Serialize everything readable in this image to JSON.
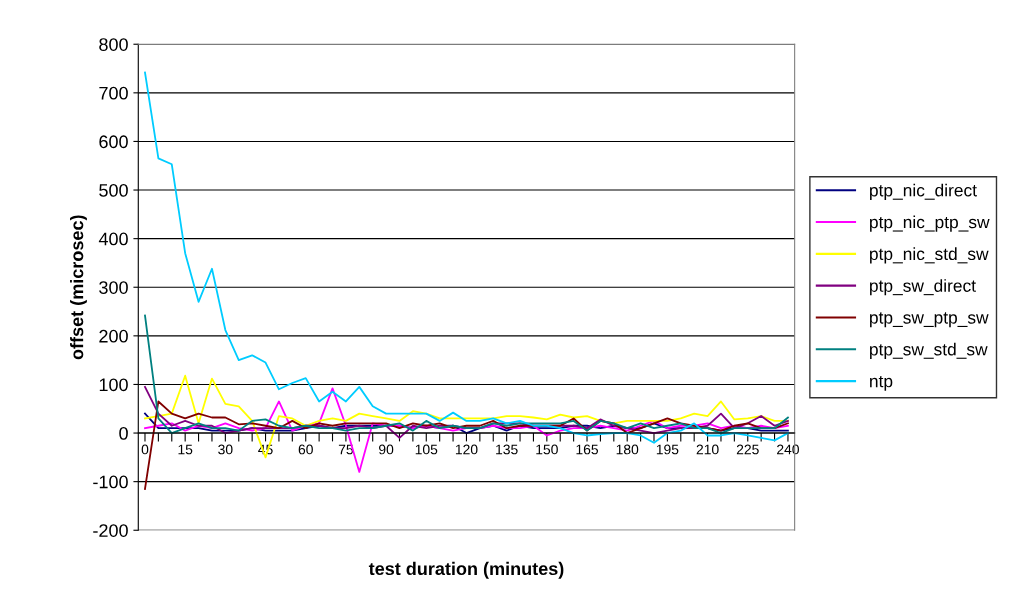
{
  "chart_data": {
    "type": "line",
    "xlabel": "test duration (minutes)",
    "ylabel": "offset (microsec)",
    "categories": [
      "0",
      null,
      null,
      "15",
      null,
      null,
      "30",
      null,
      null,
      "45",
      null,
      null,
      "60",
      null,
      null,
      "75",
      null,
      null,
      "90",
      null,
      null,
      "105",
      null,
      null,
      "120",
      null,
      null,
      "135",
      null,
      null,
      "150",
      null,
      null,
      "165",
      null,
      null,
      "180",
      null,
      null,
      "195",
      null,
      null,
      "210",
      null,
      null,
      "225",
      null,
      null,
      "240"
    ],
    "ylim": [
      -200,
      800
    ],
    "yticks": [
      -200,
      -100,
      0,
      100,
      200,
      300,
      400,
      500,
      600,
      700,
      800
    ],
    "grid": "y",
    "legend": "right",
    "marker": "none",
    "line_style": "solid",
    "series": [
      {
        "name": "ptp_nic_direct",
        "color": "#000080",
        "values": [
          40,
          10,
          10,
          10,
          10,
          5,
          5,
          5,
          10,
          5,
          5,
          5,
          10,
          15,
          10,
          15,
          15,
          15,
          15,
          15,
          10,
          15,
          10,
          15,
          0,
          10,
          15,
          5,
          15,
          10,
          10,
          10,
          15,
          15,
          10,
          15,
          10,
          10,
          20,
          10,
          10,
          10,
          10,
          5,
          10,
          10,
          5,
          5,
          5
        ]
      },
      {
        "name": "ptp_nic_ptp_sw",
        "color": "#ff00ff",
        "values": [
          10,
          15,
          20,
          5,
          15,
          10,
          20,
          10,
          5,
          10,
          65,
          5,
          15,
          20,
          92,
          15,
          -80,
          20,
          15,
          15,
          10,
          15,
          10,
          5,
          10,
          10,
          15,
          10,
          10,
          15,
          -5,
          5,
          10,
          10,
          15,
          10,
          5,
          15,
          25,
          10,
          15,
          15,
          20,
          10,
          15,
          10,
          15,
          10,
          15
        ]
      },
      {
        "name": "ptp_nic_std_sw",
        "color": "#ffff00",
        "values": [
          30,
          35,
          40,
          118,
          20,
          112,
          60,
          55,
          25,
          -50,
          35,
          30,
          15,
          25,
          30,
          25,
          40,
          35,
          30,
          25,
          45,
          40,
          30,
          30,
          30,
          30,
          30,
          35,
          35,
          32,
          28,
          38,
          32,
          35,
          25,
          20,
          25,
          25,
          25,
          25,
          30,
          40,
          35,
          65,
          28,
          30,
          35,
          25,
          25
        ]
      },
      {
        "name": "ptp_sw_direct",
        "color": "#800080",
        "values": [
          95,
          40,
          15,
          25,
          15,
          15,
          0,
          5,
          10,
          10,
          10,
          10,
          15,
          15,
          10,
          10,
          15,
          10,
          15,
          -10,
          15,
          10,
          15,
          15,
          10,
          10,
          20,
          20,
          20,
          15,
          15,
          15,
          15,
          10,
          28,
          15,
          10,
          5,
          0,
          5,
          10,
          10,
          15,
          40,
          10,
          20,
          35,
          15,
          25
        ]
      },
      {
        "name": "ptp_sw_ptp_sw",
        "color": "#800000",
        "values": [
          -115,
          65,
          40,
          30,
          40,
          32,
          32,
          18,
          20,
          15,
          10,
          25,
          10,
          20,
          15,
          20,
          20,
          20,
          20,
          10,
          20,
          15,
          20,
          10,
          15,
          15,
          25,
          10,
          15,
          15,
          15,
          15,
          30,
          5,
          25,
          20,
          0,
          10,
          20,
          30,
          20,
          15,
          10,
          5,
          15,
          20,
          10,
          10,
          20
        ]
      },
      {
        "name": "ptp_sw_std_sw",
        "color": "#008080",
        "values": [
          242,
          30,
          0,
          10,
          20,
          10,
          10,
          5,
          25,
          28,
          15,
          10,
          15,
          10,
          10,
          5,
          10,
          10,
          15,
          20,
          5,
          25,
          10,
          15,
          10,
          10,
          20,
          15,
          20,
          20,
          20,
          20,
          25,
          5,
          25,
          20,
          10,
          20,
          10,
          15,
          20,
          10,
          10,
          0,
          10,
          10,
          10,
          10,
          32
        ]
      },
      {
        "name": "ntp",
        "color": "#00ccff",
        "values": [
          742,
          565,
          553,
          370,
          270,
          338,
          212,
          150,
          160,
          145,
          90,
          103,
          113,
          65,
          85,
          65,
          95,
          55,
          40,
          40,
          40,
          40,
          25,
          42,
          25,
          25,
          30,
          20,
          25,
          15,
          15,
          10,
          0,
          -5,
          -2,
          0,
          0,
          -5,
          -20,
          0,
          5,
          20,
          -5,
          -5,
          0,
          -5,
          -10,
          -15,
          0
        ]
      }
    ]
  }
}
